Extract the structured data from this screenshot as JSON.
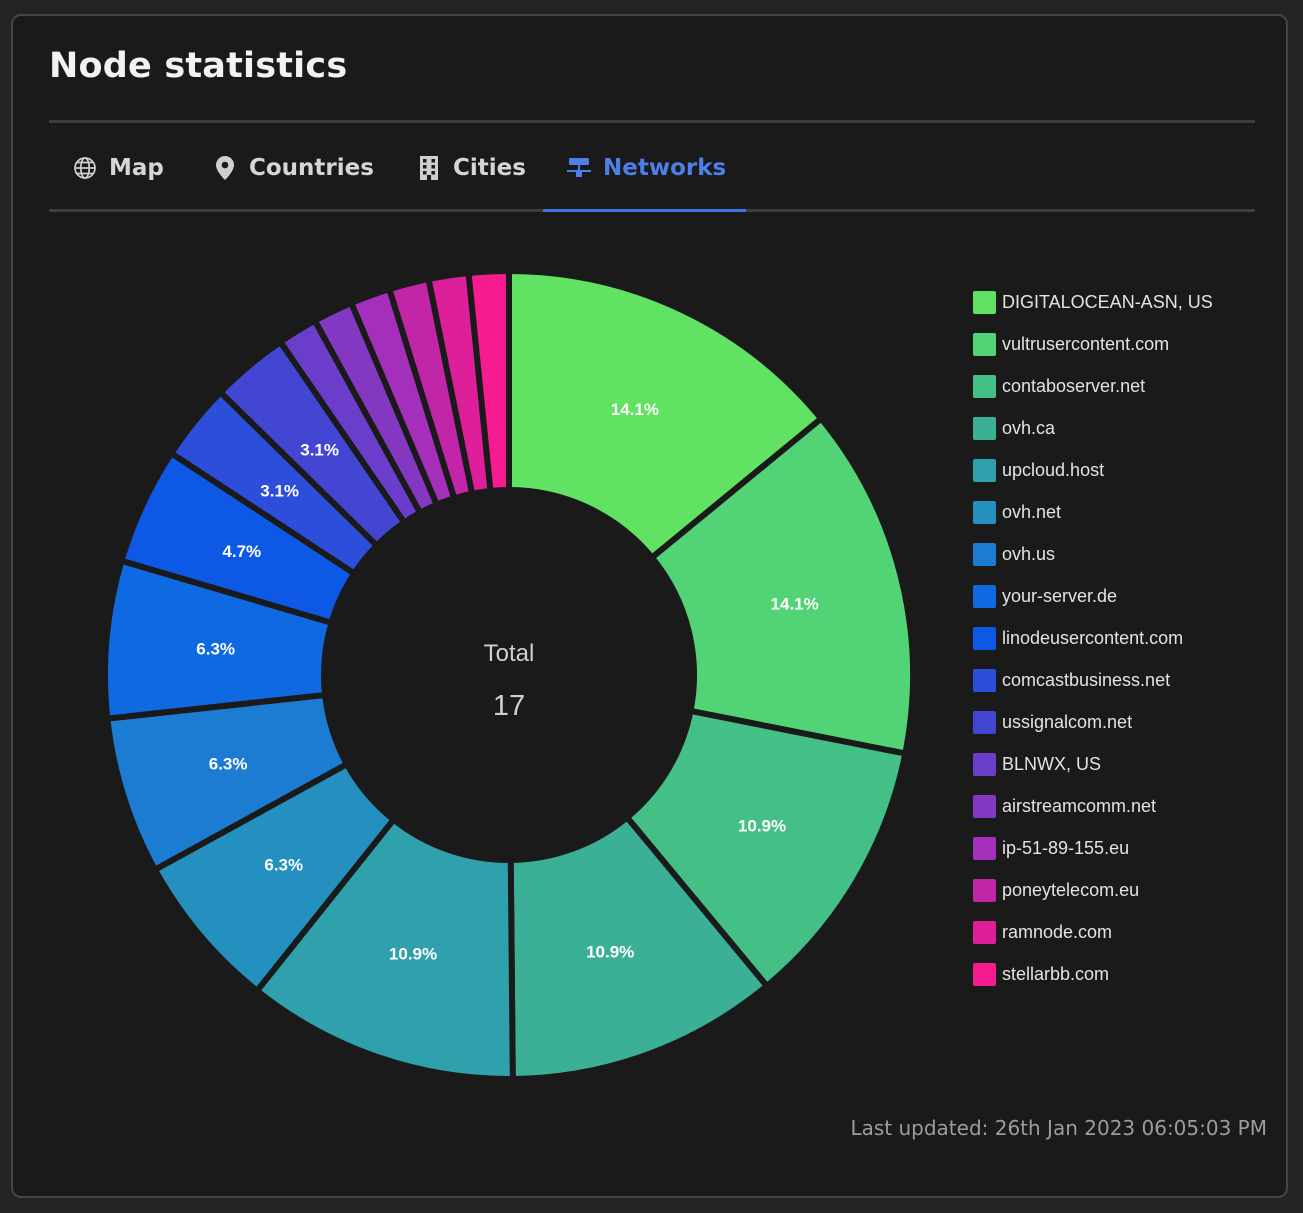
{
  "card": {
    "title": "Node statistics"
  },
  "tabs": [
    {
      "label": "Map",
      "icon": "globe-icon",
      "active": false
    },
    {
      "label": "Countries",
      "icon": "map-pin-icon",
      "active": false
    },
    {
      "label": "Cities",
      "icon": "building-icon",
      "active": false
    },
    {
      "label": "Networks",
      "icon": "network-icon",
      "active": true
    }
  ],
  "colors": {
    "accent": "#4d7fe6",
    "background": "#1a1a1b",
    "slice_border": "#1a1a1b"
  },
  "chart_data": {
    "type": "doughnut",
    "center_label": "Total",
    "center_value": "17",
    "legend_position": "right",
    "series": [
      {
        "name": "DIGITALOCEAN-ASN, US",
        "value": 14.1,
        "label": "14.1%",
        "color": "#62e262"
      },
      {
        "name": "vultrusercontent.com",
        "value": 14.1,
        "label": "14.1%",
        "color": "#52d375"
      },
      {
        "name": "contaboserver.net",
        "value": 10.9,
        "label": "10.9%",
        "color": "#44c086"
      },
      {
        "name": "ovh.ca",
        "value": 10.9,
        "label": "10.9%",
        "color": "#3bb097"
      },
      {
        "name": "upcloud.host",
        "value": 10.9,
        "label": "10.9%",
        "color": "#2ea1ac"
      },
      {
        "name": "ovh.net",
        "value": 6.3,
        "label": "6.3%",
        "color": "#2490c0"
      },
      {
        "name": "ovh.us",
        "value": 6.3,
        "label": "6.3%",
        "color": "#1b7cd2"
      },
      {
        "name": "your-server.de",
        "value": 6.3,
        "label": "6.3%",
        "color": "#0f6ae2"
      },
      {
        "name": "linodeusercontent.com",
        "value": 4.7,
        "label": "4.7%",
        "color": "#0e58e6"
      },
      {
        "name": "comcastbusiness.net",
        "value": 3.1,
        "label": "3.1%",
        "color": "#2d4ddb"
      },
      {
        "name": "ussignalcom.net",
        "value": 3.1,
        "label": "3.1%",
        "color": "#4346d2"
      },
      {
        "name": "BLNWX, US",
        "value": 1.6,
        "label": "",
        "color": "#6a3ecb"
      },
      {
        "name": "airstreamcomm.net",
        "value": 1.6,
        "label": "",
        "color": "#8438c2"
      },
      {
        "name": "ip-51-89-155.eu",
        "value": 1.6,
        "label": "",
        "color": "#a32fba"
      },
      {
        "name": "poneytelecom.eu",
        "value": 1.6,
        "label": "",
        "color": "#c126a8"
      },
      {
        "name": "ramnode.com",
        "value": 1.6,
        "label": "",
        "color": "#dd1f99"
      },
      {
        "name": "stellarbb.com",
        "value": 1.6,
        "label": "",
        "color": "#f61b8e"
      }
    ]
  },
  "footer": {
    "last_updated": "Last updated: 26th Jan 2023 06:05:03 PM"
  }
}
